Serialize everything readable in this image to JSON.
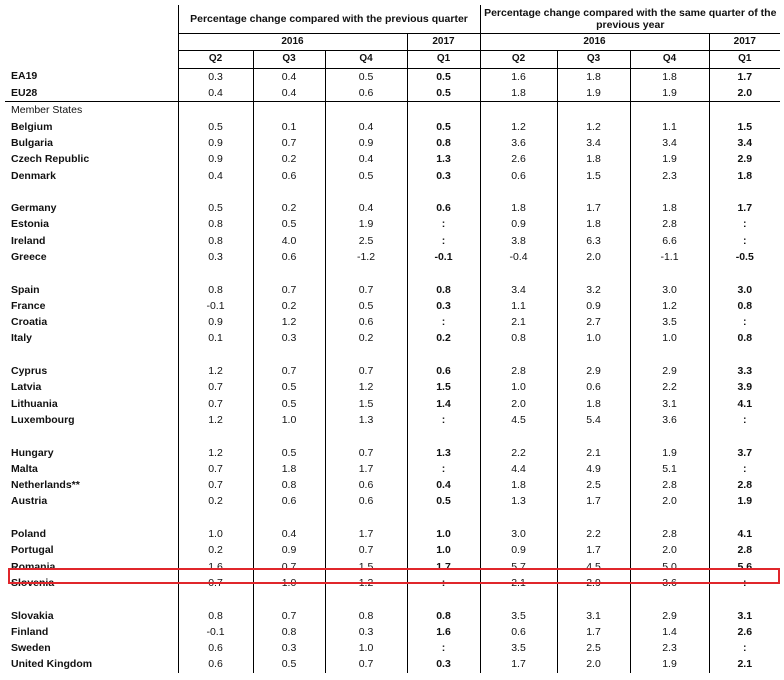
{
  "header": {
    "group_prev_quarter": "Percentage change compared with the previous quarter",
    "group_same_quarter": "Percentage change compared with the same quarter of the previous year",
    "year_2016": "2016",
    "year_2017": "2017",
    "quarters": [
      "Q2",
      "Q3",
      "Q4",
      "Q1",
      "Q2",
      "Q3",
      "Q4",
      "Q1"
    ],
    "member_states_label": "Member States"
  },
  "aggregates": [
    {
      "name": "EA19",
      "values": [
        "0.3",
        "0.4",
        "0.5",
        "0.5",
        "1.6",
        "1.8",
        "1.8",
        "1.7"
      ]
    },
    {
      "name": "EU28",
      "values": [
        "0.4",
        "0.4",
        "0.6",
        "0.5",
        "1.8",
        "1.9",
        "1.9",
        "2.0"
      ]
    }
  ],
  "groups": [
    [
      {
        "name": "Belgium",
        "values": [
          "0.5",
          "0.1",
          "0.4",
          "0.5",
          "1.2",
          "1.2",
          "1.1",
          "1.5"
        ]
      },
      {
        "name": "Bulgaria",
        "values": [
          "0.9",
          "0.7",
          "0.9",
          "0.8",
          "3.6",
          "3.4",
          "3.4",
          "3.4"
        ]
      },
      {
        "name": "Czech Republic",
        "values": [
          "0.9",
          "0.2",
          "0.4",
          "1.3",
          "2.6",
          "1.8",
          "1.9",
          "2.9"
        ]
      },
      {
        "name": "Denmark",
        "values": [
          "0.4",
          "0.6",
          "0.5",
          "0.3",
          "0.6",
          "1.5",
          "2.3",
          "1.8"
        ]
      }
    ],
    [
      {
        "name": "Germany",
        "values": [
          "0.5",
          "0.2",
          "0.4",
          "0.6",
          "1.8",
          "1.7",
          "1.8",
          "1.7"
        ]
      },
      {
        "name": "Estonia",
        "values": [
          "0.8",
          "0.5",
          "1.9",
          ":",
          "0.9",
          "1.8",
          "2.8",
          ":"
        ]
      },
      {
        "name": "Ireland",
        "values": [
          "0.8",
          "4.0",
          "2.5",
          ":",
          "3.8",
          "6.3",
          "6.6",
          ":"
        ]
      },
      {
        "name": "Greece",
        "values": [
          "0.3",
          "0.6",
          "-1.2",
          "-0.1",
          "-0.4",
          "2.0",
          "-1.1",
          "-0.5"
        ]
      }
    ],
    [
      {
        "name": "Spain",
        "values": [
          "0.8",
          "0.7",
          "0.7",
          "0.8",
          "3.4",
          "3.2",
          "3.0",
          "3.0"
        ]
      },
      {
        "name": "France",
        "values": [
          "-0.1",
          "0.2",
          "0.5",
          "0.3",
          "1.1",
          "0.9",
          "1.2",
          "0.8"
        ]
      },
      {
        "name": "Croatia",
        "values": [
          "0.9",
          "1.2",
          "0.6",
          ":",
          "2.1",
          "2.7",
          "3.5",
          ":"
        ]
      },
      {
        "name": "Italy",
        "values": [
          "0.1",
          "0.3",
          "0.2",
          "0.2",
          "0.8",
          "1.0",
          "1.0",
          "0.8"
        ]
      }
    ],
    [
      {
        "name": "Cyprus",
        "values": [
          "1.2",
          "0.7",
          "0.7",
          "0.6",
          "2.8",
          "2.9",
          "2.9",
          "3.3"
        ]
      },
      {
        "name": "Latvia",
        "values": [
          "0.7",
          "0.5",
          "1.2",
          "1.5",
          "1.0",
          "0.6",
          "2.2",
          "3.9"
        ]
      },
      {
        "name": "Lithuania",
        "values": [
          "0.7",
          "0.5",
          "1.5",
          "1.4",
          "2.0",
          "1.8",
          "3.1",
          "4.1"
        ]
      },
      {
        "name": "Luxembourg",
        "values": [
          "1.2",
          "1.0",
          "1.3",
          ":",
          "4.5",
          "5.4",
          "3.6",
          ":"
        ]
      }
    ],
    [
      {
        "name": "Hungary",
        "values": [
          "1.2",
          "0.5",
          "0.7",
          "1.3",
          "2.2",
          "2.1",
          "1.9",
          "3.7"
        ]
      },
      {
        "name": "Malta",
        "values": [
          "0.7",
          "1.8",
          "1.7",
          ":",
          "4.4",
          "4.9",
          "5.1",
          ":"
        ]
      },
      {
        "name": "Netherlands**",
        "values": [
          "0.7",
          "0.8",
          "0.6",
          "0.4",
          "1.8",
          "2.5",
          "2.8",
          "2.8"
        ]
      },
      {
        "name": "Austria",
        "values": [
          "0.2",
          "0.6",
          "0.6",
          "0.5",
          "1.3",
          "1.7",
          "2.0",
          "1.9"
        ]
      }
    ],
    [
      {
        "name": "Poland",
        "values": [
          "1.0",
          "0.4",
          "1.7",
          "1.0",
          "3.0",
          "2.2",
          "2.8",
          "4.1"
        ]
      },
      {
        "name": "Portugal",
        "values": [
          "0.2",
          "0.9",
          "0.7",
          "1.0",
          "0.9",
          "1.7",
          "2.0",
          "2.8"
        ]
      },
      {
        "name": "Romania",
        "values": [
          "1.6",
          "0.7",
          "1.5",
          "1.7",
          "5.7",
          "4.5",
          "5.0",
          "5.6"
        ]
      },
      {
        "name": "Slovenia",
        "values": [
          "0.7",
          "1.0",
          "1.2",
          ":",
          "2.1",
          "2.9",
          "3.6",
          ":"
        ]
      }
    ],
    [
      {
        "name": "Slovakia",
        "values": [
          "0.8",
          "0.7",
          "0.8",
          "0.8",
          "3.5",
          "3.1",
          "2.9",
          "3.1"
        ]
      },
      {
        "name": "Finland",
        "values": [
          "-0.1",
          "0.8",
          "0.3",
          "1.6",
          "0.6",
          "1.7",
          "1.4",
          "2.6"
        ]
      },
      {
        "name": "Sweden",
        "values": [
          "0.6",
          "0.3",
          "1.0",
          ":",
          "3.5",
          "2.5",
          "2.3",
          ":"
        ]
      },
      {
        "name": "United Kingdom",
        "values": [
          "0.6",
          "0.5",
          "0.7",
          "0.3",
          "1.7",
          "2.0",
          "1.9",
          "2.1"
        ]
      }
    ]
  ],
  "highlight": {
    "color": "#e0262b",
    "row": "Romania"
  }
}
